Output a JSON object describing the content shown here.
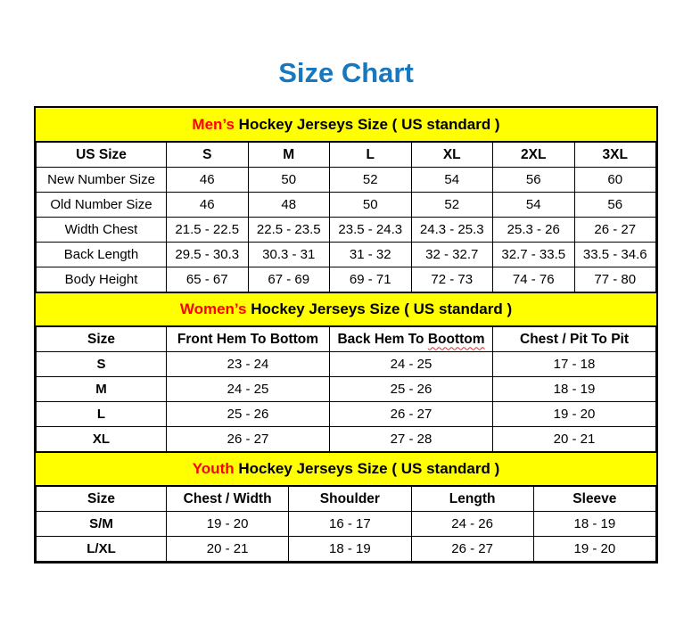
{
  "page": {
    "title": "Size Chart"
  },
  "colors": {
    "title_blue": "#1977BE",
    "band_yellow": "#FFFF00",
    "accent_red": "#FF0000",
    "border_black": "#000000",
    "squiggle_red": "#D93025"
  },
  "sections": [
    {
      "id": "mens",
      "band_highlight": "Men’s",
      "band_text": "Hockey Jerseys Size ( US standard )",
      "columns": [
        "US Size",
        "S",
        "M",
        "L",
        "XL",
        "2XL",
        "3XL"
      ],
      "rows": [
        {
          "label": "New Number Size",
          "values": [
            "46",
            "50",
            "52",
            "54",
            "56",
            "60"
          ]
        },
        {
          "label": "Old Number Size",
          "values": [
            "46",
            "48",
            "50",
            "52",
            "54",
            "56"
          ]
        },
        {
          "label": "Width Chest",
          "values": [
            "21.5 - 22.5",
            "22.5 - 23.5",
            "23.5 - 24.3",
            "24.3 - 25.3",
            "25.3 - 26",
            "26 - 27"
          ]
        },
        {
          "label": "Back Length",
          "values": [
            "29.5 - 30.3",
            "30.3 - 31",
            "31 - 32",
            "32 - 32.7",
            "32.7 - 33.5",
            "33.5 - 34.6"
          ]
        },
        {
          "label": "Body Height",
          "values": [
            "65 - 67",
            "67 - 69",
            "69 - 71",
            "72 - 73",
            "74 - 76",
            "77 - 80"
          ]
        }
      ]
    },
    {
      "id": "womens",
      "band_highlight": "Women’s",
      "band_text": "Hockey Jerseys Size ( US standard )",
      "columns": [
        "Size",
        "Front Hem To Bottom",
        {
          "label": "Back Hem To Boottom",
          "squiggle": "Boottom"
        },
        "Chest / Pit To Pit"
      ],
      "rows": [
        {
          "label": "S",
          "values": [
            "23 - 24",
            "24 - 25",
            "17 - 18"
          ]
        },
        {
          "label": "M",
          "values": [
            "24 - 25",
            "25 - 26",
            "18 - 19"
          ]
        },
        {
          "label": "L",
          "values": [
            "25 - 26",
            "26 - 27",
            "19 - 20"
          ]
        },
        {
          "label": "XL",
          "values": [
            "26 - 27",
            "27 - 28",
            "20 - 21"
          ]
        }
      ]
    },
    {
      "id": "youth",
      "band_highlight": "Youth",
      "band_text": "Hockey Jerseys Size ( US standard )",
      "columns": [
        "Size",
        "Chest / Width",
        "Shoulder",
        "Length",
        "Sleeve"
      ],
      "rows": [
        {
          "label": "S/M",
          "values": [
            "19 - 20",
            "16 - 17",
            "24 - 26",
            "18 - 19"
          ]
        },
        {
          "label": "L/XL",
          "values": [
            "20 - 21",
            "18 - 19",
            "26 - 27",
            "19 - 20"
          ]
        }
      ]
    }
  ]
}
